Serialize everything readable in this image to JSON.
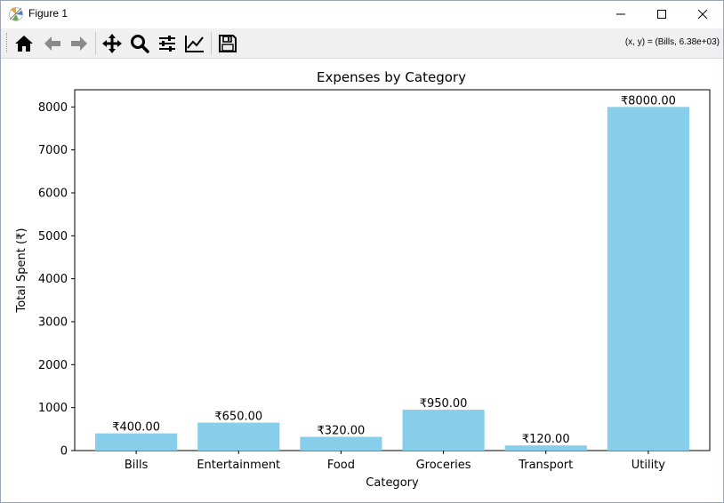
{
  "window": {
    "title": "Figure 1",
    "minimize_icon": "minimize-icon",
    "maximize_icon": "maximize-icon",
    "close_icon": "close-icon"
  },
  "toolbar": {
    "icons": [
      "home-icon",
      "back-arrow-icon",
      "forward-arrow-icon",
      "pan-icon",
      "zoom-icon",
      "configure-subplots-icon",
      "edit-axis-icon",
      "save-icon"
    ],
    "coords": "(x, y) = (Bills, 6.38e+03)"
  },
  "colors": {
    "bar": "#87ceeb",
    "axes": "#000000"
  },
  "chart_data": {
    "type": "bar",
    "title": "Expenses by Category",
    "xlabel": "Category",
    "ylabel": "Total Spent (₹)",
    "categories": [
      "Bills",
      "Entertainment",
      "Food",
      "Groceries",
      "Transport",
      "Utility"
    ],
    "values": [
      400,
      650,
      320,
      950,
      120,
      8000
    ],
    "value_labels": [
      "₹400.00",
      "₹650.00",
      "₹320.00",
      "₹950.00",
      "₹120.00",
      "₹8000.00"
    ],
    "ylim": [
      0,
      8400
    ],
    "yticks": [
      0,
      1000,
      2000,
      3000,
      4000,
      5000,
      6000,
      7000,
      8000
    ],
    "grid": false
  }
}
